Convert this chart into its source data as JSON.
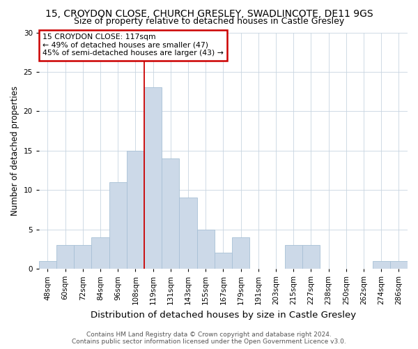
{
  "title": "15, CROYDON CLOSE, CHURCH GRESLEY, SWADLINCOTE, DE11 9GS",
  "subtitle": "Size of property relative to detached houses in Castle Gresley",
  "xlabel": "Distribution of detached houses by size in Castle Gresley",
  "ylabel": "Number of detached properties",
  "categories": [
    "48sqm",
    "60sqm",
    "72sqm",
    "84sqm",
    "96sqm",
    "108sqm",
    "119sqm",
    "131sqm",
    "143sqm",
    "155sqm",
    "167sqm",
    "179sqm",
    "191sqm",
    "203sqm",
    "215sqm",
    "227sqm",
    "238sqm",
    "250sqm",
    "262sqm",
    "274sqm",
    "286sqm"
  ],
  "values": [
    1,
    3,
    3,
    4,
    11,
    15,
    23,
    14,
    9,
    5,
    2,
    4,
    0,
    0,
    3,
    3,
    0,
    0,
    0,
    1,
    1
  ],
  "bar_color": "#ccd9e8",
  "bar_edge_color": "#a8c0d6",
  "vline_x": 5.5,
  "vline_color": "#cc0000",
  "annotation_text": "15 CROYDON CLOSE: 117sqm\n← 49% of detached houses are smaller (47)\n45% of semi-detached houses are larger (43) →",
  "annotation_box_color": "#ffffff",
  "annotation_box_edge": "#cc0000",
  "ylim": [
    0,
    30
  ],
  "yticks": [
    0,
    5,
    10,
    15,
    20,
    25,
    30
  ],
  "footer": "Contains HM Land Registry data © Crown copyright and database right 2024.\nContains public sector information licensed under the Open Government Licence v3.0.",
  "title_fontsize": 10,
  "subtitle_fontsize": 9,
  "xlabel_fontsize": 9.5,
  "ylabel_fontsize": 8.5,
  "tick_fontsize": 7.5,
  "footer_fontsize": 6.5,
  "background_color": "#ffffff",
  "grid_color": "#c8d4e0"
}
